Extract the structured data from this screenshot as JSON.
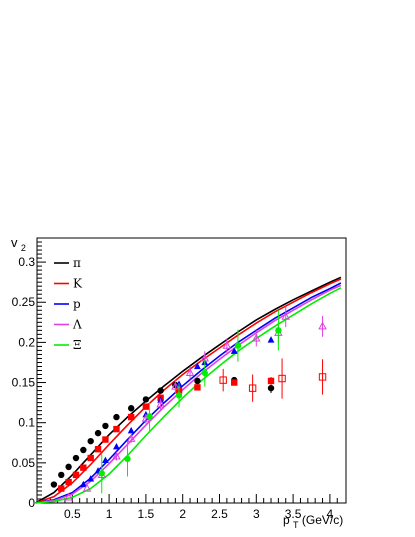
{
  "chart_data": {
    "type": "scatter",
    "title": "",
    "xlabel_main": "p",
    "xlabel_sub": "T",
    "xlabel_unit": " (GeV/c)",
    "ylabel_main": "v",
    "ylabel_sub": "2",
    "xlim": [
      0,
      4.15
    ],
    "ylim": [
      0,
      0.33
    ],
    "x_ticks": [
      "0.5",
      "1",
      "1.5",
      "2",
      "2.5",
      "3",
      "3.5",
      "4"
    ],
    "y_ticks": [
      "0.05",
      "0.1",
      "0.15",
      "0.2",
      "0.25",
      "0.3"
    ],
    "y_zero": "0",
    "legend_position": "top-left",
    "grid": false,
    "series": [
      {
        "name": "π",
        "color": "#000000",
        "marker": "circle",
        "curve": [
          [
            0,
            0
          ],
          [
            0.25,
            0.013
          ],
          [
            0.5,
            0.035
          ],
          [
            0.75,
            0.06
          ],
          [
            1.0,
            0.085
          ],
          [
            1.25,
            0.107
          ],
          [
            1.5,
            0.127
          ],
          [
            1.75,
            0.146
          ],
          [
            2.0,
            0.164
          ],
          [
            2.25,
            0.181
          ],
          [
            2.5,
            0.197
          ],
          [
            2.75,
            0.213
          ],
          [
            3.0,
            0.228
          ],
          [
            3.25,
            0.241
          ],
          [
            3.5,
            0.253
          ],
          [
            3.75,
            0.264
          ],
          [
            4.0,
            0.275
          ],
          [
            4.15,
            0.281
          ]
        ],
        "points": [
          [
            0.25,
            0.023
          ],
          [
            0.35,
            0.035
          ],
          [
            0.45,
            0.045
          ],
          [
            0.55,
            0.056
          ],
          [
            0.65,
            0.066
          ],
          [
            0.75,
            0.077
          ],
          [
            0.85,
            0.087
          ],
          [
            0.95,
            0.096
          ],
          [
            1.1,
            0.107
          ],
          [
            1.3,
            0.118
          ],
          [
            1.5,
            0.129
          ],
          [
            1.7,
            0.14
          ],
          [
            1.9,
            0.147
          ],
          [
            2.2,
            0.152
          ],
          [
            2.7,
            0.153
          ],
          [
            3.2,
            0.143
          ]
        ],
        "errors": [
          0,
          0,
          0,
          0,
          0,
          0,
          0,
          0,
          0,
          0,
          0,
          0,
          0,
          0,
          0,
          0.006
        ]
      },
      {
        "name": "K",
        "color": "#ff0000",
        "marker": "square",
        "curve": [
          [
            0,
            0
          ],
          [
            0.25,
            0.008
          ],
          [
            0.5,
            0.025
          ],
          [
            0.75,
            0.048
          ],
          [
            1.0,
            0.073
          ],
          [
            1.25,
            0.097
          ],
          [
            1.5,
            0.12
          ],
          [
            1.75,
            0.141
          ],
          [
            2.0,
            0.16
          ],
          [
            2.25,
            0.177
          ],
          [
            2.5,
            0.193
          ],
          [
            2.75,
            0.209
          ],
          [
            3.0,
            0.224
          ],
          [
            3.25,
            0.238
          ],
          [
            3.5,
            0.25
          ],
          [
            3.75,
            0.262
          ],
          [
            4.0,
            0.273
          ],
          [
            4.15,
            0.279
          ]
        ],
        "points": [
          [
            0.35,
            0.018
          ],
          [
            0.45,
            0.026
          ],
          [
            0.55,
            0.035
          ],
          [
            0.65,
            0.044
          ],
          [
            0.75,
            0.056
          ],
          [
            0.85,
            0.067
          ],
          [
            0.95,
            0.079
          ],
          [
            1.1,
            0.092
          ],
          [
            1.3,
            0.107
          ],
          [
            1.5,
            0.12
          ],
          [
            1.7,
            0.131
          ],
          [
            1.95,
            0.14
          ],
          [
            2.2,
            0.144
          ],
          [
            2.7,
            0.15
          ],
          [
            3.2,
            0.152
          ]
        ],
        "errors": [
          0,
          0,
          0,
          0,
          0,
          0,
          0,
          0,
          0,
          0,
          0,
          0,
          0,
          0,
          0.005
        ]
      },
      {
        "name": "p",
        "color": "#0000ff",
        "marker": "triangle",
        "curve": [
          [
            0,
            0
          ],
          [
            0.25,
            0.004
          ],
          [
            0.5,
            0.013
          ],
          [
            0.75,
            0.031
          ],
          [
            1.0,
            0.054
          ],
          [
            1.25,
            0.079
          ],
          [
            1.5,
            0.103
          ],
          [
            1.75,
            0.125
          ],
          [
            2.0,
            0.146
          ],
          [
            2.25,
            0.165
          ],
          [
            2.5,
            0.183
          ],
          [
            2.75,
            0.2
          ],
          [
            3.0,
            0.215
          ],
          [
            3.25,
            0.23
          ],
          [
            3.5,
            0.243
          ],
          [
            3.75,
            0.256
          ],
          [
            4.0,
            0.267
          ],
          [
            4.15,
            0.274
          ]
        ],
        "points": [
          [
            0.65,
            0.023
          ],
          [
            0.75,
            0.03
          ],
          [
            0.85,
            0.04
          ],
          [
            0.95,
            0.053
          ],
          [
            1.1,
            0.07
          ],
          [
            1.3,
            0.09
          ],
          [
            1.5,
            0.11
          ],
          [
            1.7,
            0.128
          ],
          [
            1.95,
            0.148
          ],
          [
            2.2,
            0.17
          ],
          [
            2.3,
            0.175
          ],
          [
            2.7,
            0.189
          ],
          [
            3.2,
            0.203
          ]
        ],
        "errors": [
          0,
          0,
          0,
          0,
          0,
          0,
          0,
          0,
          0,
          0,
          0,
          0,
          0
        ]
      },
      {
        "name": "Λ",
        "color": "#e040e0",
        "marker": "triangle-open",
        "curve": [
          [
            0,
            0
          ],
          [
            0.25,
            0.003
          ],
          [
            0.5,
            0.011
          ],
          [
            0.75,
            0.027
          ],
          [
            1.0,
            0.049
          ],
          [
            1.25,
            0.073
          ],
          [
            1.5,
            0.097
          ],
          [
            1.75,
            0.12
          ],
          [
            2.0,
            0.141
          ],
          [
            2.25,
            0.161
          ],
          [
            2.5,
            0.179
          ],
          [
            2.75,
            0.196
          ],
          [
            3.0,
            0.212
          ],
          [
            3.25,
            0.227
          ],
          [
            3.5,
            0.24
          ],
          [
            3.75,
            0.253
          ],
          [
            4.0,
            0.265
          ],
          [
            4.15,
            0.271
          ]
        ],
        "points": [
          [
            0.45,
            0.007
          ],
          [
            0.7,
            0.018
          ],
          [
            0.9,
            0.035
          ],
          [
            1.1,
            0.058
          ],
          [
            1.3,
            0.08
          ],
          [
            1.5,
            0.105
          ],
          [
            1.7,
            0.123
          ],
          [
            1.9,
            0.145
          ],
          [
            2.1,
            0.162
          ],
          [
            2.3,
            0.18
          ],
          [
            2.6,
            0.196
          ],
          [
            3.0,
            0.205
          ],
          [
            3.3,
            0.212
          ],
          [
            3.4,
            0.232
          ],
          [
            3.9,
            0.22
          ]
        ],
        "errors": [
          0,
          0,
          0.005,
          0.005,
          0.005,
          0.006,
          0.007,
          0.008,
          0.008,
          0.009,
          0.009,
          0.01,
          0.012,
          0.013,
          0.013
        ]
      },
      {
        "name": "Ξ",
        "color": "#00ee00",
        "marker": "circle",
        "curve": [
          [
            0,
            0
          ],
          [
            0.25,
            0.002
          ],
          [
            0.5,
            0.007
          ],
          [
            0.75,
            0.018
          ],
          [
            1.0,
            0.036
          ],
          [
            1.25,
            0.059
          ],
          [
            1.5,
            0.084
          ],
          [
            1.75,
            0.108
          ],
          [
            2.0,
            0.131
          ],
          [
            2.25,
            0.152
          ],
          [
            2.5,
            0.171
          ],
          [
            2.75,
            0.189
          ],
          [
            3.0,
            0.205
          ],
          [
            3.25,
            0.22
          ],
          [
            3.5,
            0.234
          ],
          [
            3.75,
            0.248
          ],
          [
            4.0,
            0.261
          ],
          [
            4.15,
            0.268
          ]
        ],
        "points": [
          [
            0.9,
            0.037
          ],
          [
            1.25,
            0.055
          ],
          [
            1.55,
            0.108
          ],
          [
            1.95,
            0.134
          ],
          [
            2.3,
            0.162
          ],
          [
            2.75,
            0.196
          ],
          [
            3.3,
            0.215
          ]
        ],
        "errors": [
          0.025,
          0.022,
          0.018,
          0.015,
          0.017,
          0.02,
          0.025
        ]
      },
      {
        "name": "",
        "color": "#ff0000",
        "marker": "square-open",
        "curve": [],
        "points": [
          [
            2.55,
            0.153
          ],
          [
            2.95,
            0.143
          ],
          [
            3.35,
            0.155
          ],
          [
            3.9,
            0.157
          ]
        ],
        "errors": [
          0.014,
          0.017,
          0.025,
          0.022
        ]
      }
    ]
  }
}
